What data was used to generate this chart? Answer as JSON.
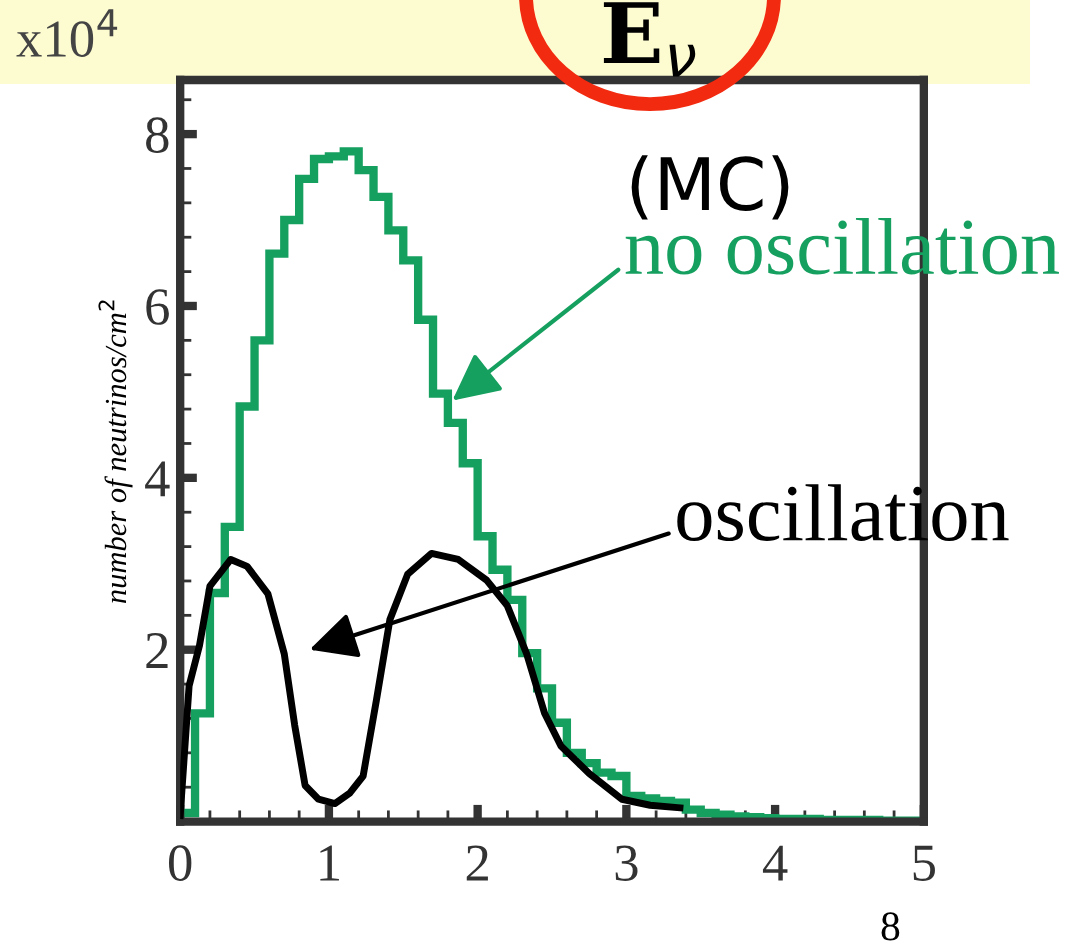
{
  "chart_data": {
    "type": "histogram",
    "title": "E$_{ν}$",
    "subtitle": "(MC)",
    "ylabel": "number of neutrinos/cm$^{2}$",
    "annotations": [
      "x10$^{4}$",
      "8"
    ],
    "xlim": [
      0,
      5
    ],
    "xticks": [
      0,
      1,
      2,
      3,
      4,
      5
    ],
    "ylim": [
      0,
      8.63
    ],
    "yticks": [
      2,
      4,
      6,
      8
    ],
    "grid": false,
    "legend": false,
    "bins": [
      0,
      0.1,
      0.2,
      0.3,
      0.4,
      0.5,
      0.6,
      0.7,
      0.8,
      0.9,
      1.0,
      1.1,
      1.2,
      1.3,
      1.4,
      1.5,
      1.6,
      1.7,
      1.8,
      1.9,
      2.0,
      2.1,
      2.2,
      2.3,
      2.4,
      2.5,
      2.6,
      2.7,
      2.8,
      2.9,
      3.0,
      3.1,
      3.2,
      3.3,
      3.4,
      3.5,
      3.6,
      3.7,
      3.8,
      3.9,
      4.0,
      4.1,
      4.2,
      4.3,
      4.4,
      4.5,
      4.6,
      4.7,
      4.8,
      4.9,
      5.0
    ],
    "series": [
      {
        "name": "no oscillation",
        "color": "#16a060",
        "values": [
          0.1,
          1.26,
          2.66,
          3.43,
          4.83,
          5.6,
          6.61,
          7.0,
          7.48,
          7.71,
          7.74,
          7.8,
          7.58,
          7.27,
          6.88,
          6.53,
          5.84,
          4.98,
          4.64,
          4.17,
          3.32,
          2.93,
          2.58,
          1.96,
          1.55,
          1.15,
          0.8,
          0.68,
          0.57,
          0.53,
          0.3,
          0.27,
          0.24,
          0.22,
          0.14,
          0.1,
          0.08,
          0.06,
          0.05,
          0.04,
          0.03,
          0.03,
          0.03,
          0.02,
          0.02,
          0.02,
          0.02,
          0.01,
          0.01,
          0.01
        ]
      },
      {
        "type": "line",
        "name": "oscillation",
        "color": "#000000",
        "x": [
          0,
          0.06,
          0.13,
          0.2,
          0.34,
          0.45,
          0.59,
          0.7,
          0.77,
          0.84,
          0.93,
          1.04,
          1.14,
          1.23,
          1.32,
          1.41,
          1.53,
          1.69,
          1.87,
          2.06,
          2.2,
          2.33,
          2.45,
          2.56,
          2.75,
          2.97,
          3.16,
          3.36
        ],
        "values": [
          0.07,
          1.58,
          2.05,
          2.74,
          3.05,
          2.97,
          2.65,
          1.95,
          1.12,
          0.42,
          0.26,
          0.21,
          0.33,
          0.53,
          1.42,
          2.35,
          2.88,
          3.12,
          3.05,
          2.81,
          2.51,
          1.95,
          1.26,
          0.88,
          0.56,
          0.26,
          0.19,
          0.16
        ]
      }
    ]
  }
}
